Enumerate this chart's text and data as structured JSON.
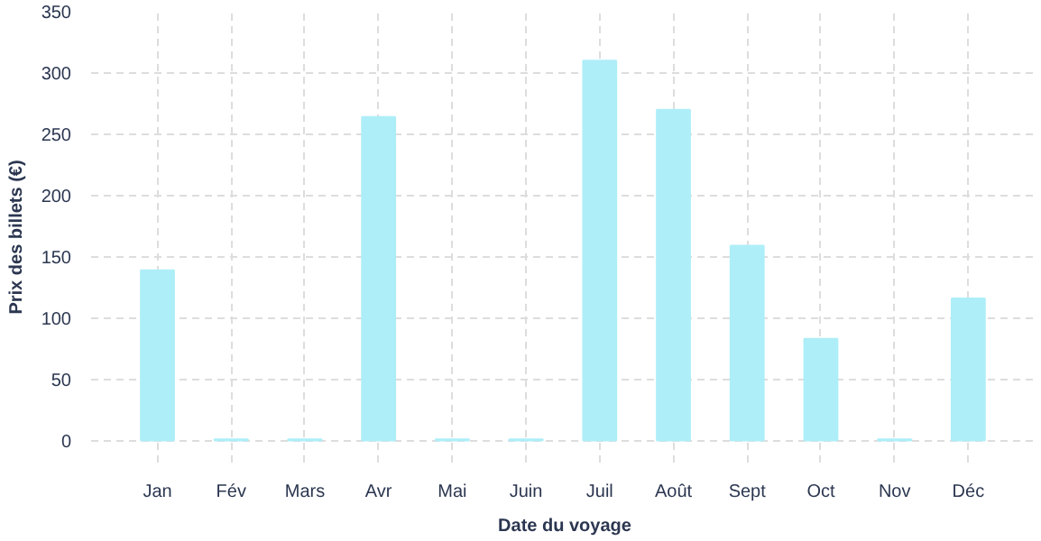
{
  "chart_data": {
    "type": "bar",
    "xlabel": "Date du voyage",
    "ylabel": "Prix des billets (€)",
    "categories": [
      "Jan",
      "Fév",
      "Mars",
      "Avr",
      "Mai",
      "Juin",
      "Juil",
      "Août",
      "Sept",
      "Oct",
      "Nov",
      "Déc"
    ],
    "values": [
      139,
      1,
      1,
      264,
      1,
      1,
      310,
      270,
      159,
      83,
      1,
      116
    ],
    "color": "#aeeef8",
    "ylim": [
      -18,
      350
    ],
    "yticks": [
      0,
      50,
      100,
      150,
      200,
      250,
      300,
      350
    ],
    "grid": true
  }
}
